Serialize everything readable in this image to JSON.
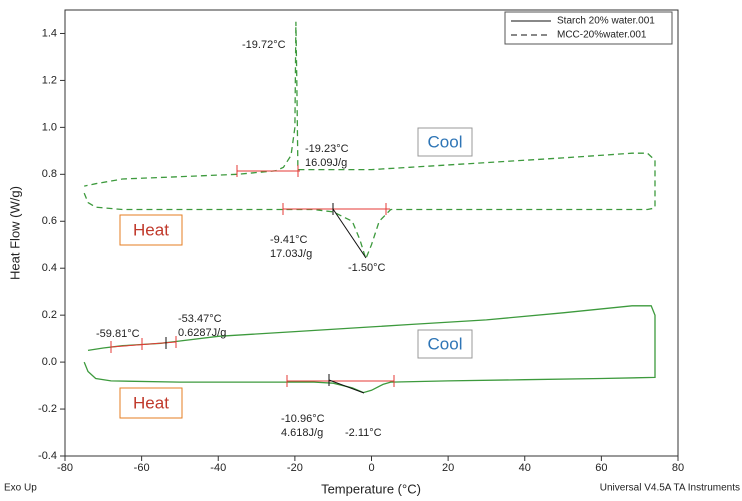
{
  "chart_data": {
    "type": "line",
    "xlabel": "Temperature (°C)",
    "ylabel": "Heat Flow (W/g)",
    "xlim": [
      -80,
      80
    ],
    "xticks": [
      -80,
      -60,
      -40,
      -20,
      0,
      20,
      40,
      60,
      80
    ],
    "ylim": [
      -0.4,
      1.5
    ],
    "yticks": [
      {
        "value": -0.4,
        "label": "-0.4"
      },
      -0.2,
      {
        "value": 0,
        "label": "0.0"
      },
      0.2,
      0.4,
      0.6,
      0.8,
      {
        "value": 1,
        "label": "1.0"
      },
      1.2,
      1.4
    ],
    "legend": "upper right",
    "series": [
      {
        "name": "Starch 20% water.001",
        "color": "#3d9a3d",
        "dash": false,
        "x": [
          -75,
          -74,
          -72,
          -68,
          -50,
          -30,
          -15,
          -10,
          -5,
          -2.11,
          0,
          3,
          5,
          20,
          40,
          60,
          74,
          74,
          73,
          68,
          50,
          30,
          10,
          0,
          -20,
          -40,
          -50,
          -55,
          -60,
          -65,
          -70,
          -74
        ],
        "values": [
          0.0,
          -0.04,
          -0.07,
          -0.08,
          -0.085,
          -0.085,
          -0.085,
          -0.09,
          -0.11,
          -0.13,
          -0.12,
          -0.095,
          -0.085,
          -0.08,
          -0.075,
          -0.07,
          -0.065,
          0.2,
          0.24,
          0.24,
          0.21,
          0.18,
          0.16,
          0.15,
          0.13,
          0.11,
          0.09,
          0.08,
          0.075,
          0.07,
          0.06,
          0.05
        ]
      },
      {
        "name": "MCC-20%water.001",
        "color": "#3d9a3d",
        "dash": true,
        "x": [
          -75,
          -74,
          -72,
          -65,
          -50,
          -30,
          -15,
          -10,
          -5,
          -3,
          -1.5,
          0,
          2,
          5,
          20,
          40,
          60,
          72,
          73.5,
          74,
          74,
          72,
          68,
          50,
          30,
          10,
          0,
          -10,
          -18,
          -19.2,
          -19.5,
          -19.72,
          -20,
          -21,
          -23,
          -25,
          -35,
          -50,
          -65,
          -72,
          -75
        ],
        "values": [
          0.72,
          0.68,
          0.66,
          0.65,
          0.65,
          0.65,
          0.65,
          0.64,
          0.6,
          0.52,
          0.44,
          0.5,
          0.6,
          0.65,
          0.65,
          0.65,
          0.65,
          0.65,
          0.655,
          0.66,
          0.86,
          0.89,
          0.89,
          0.87,
          0.85,
          0.83,
          0.82,
          0.82,
          0.82,
          0.82,
          1.2,
          1.45,
          1.0,
          0.88,
          0.83,
          0.815,
          0.8,
          0.79,
          0.78,
          0.76,
          0.75
        ]
      }
    ],
    "annotations": [
      "-19.72°C",
      "-19.23°C",
      "16.09J/g",
      "Cool",
      "-9.41°C",
      "17.03J/g",
      "-1.50°C",
      "Heat",
      "-59.81°C",
      "-53.47°C",
      "0.6287J/g",
      "Cool",
      "-10.96°C",
      "4.618J/g",
      "-2.11°C",
      "Heat"
    ],
    "footer_left": "Exo Up",
    "footer_right": "Universal V4.5A TA Instruments"
  }
}
